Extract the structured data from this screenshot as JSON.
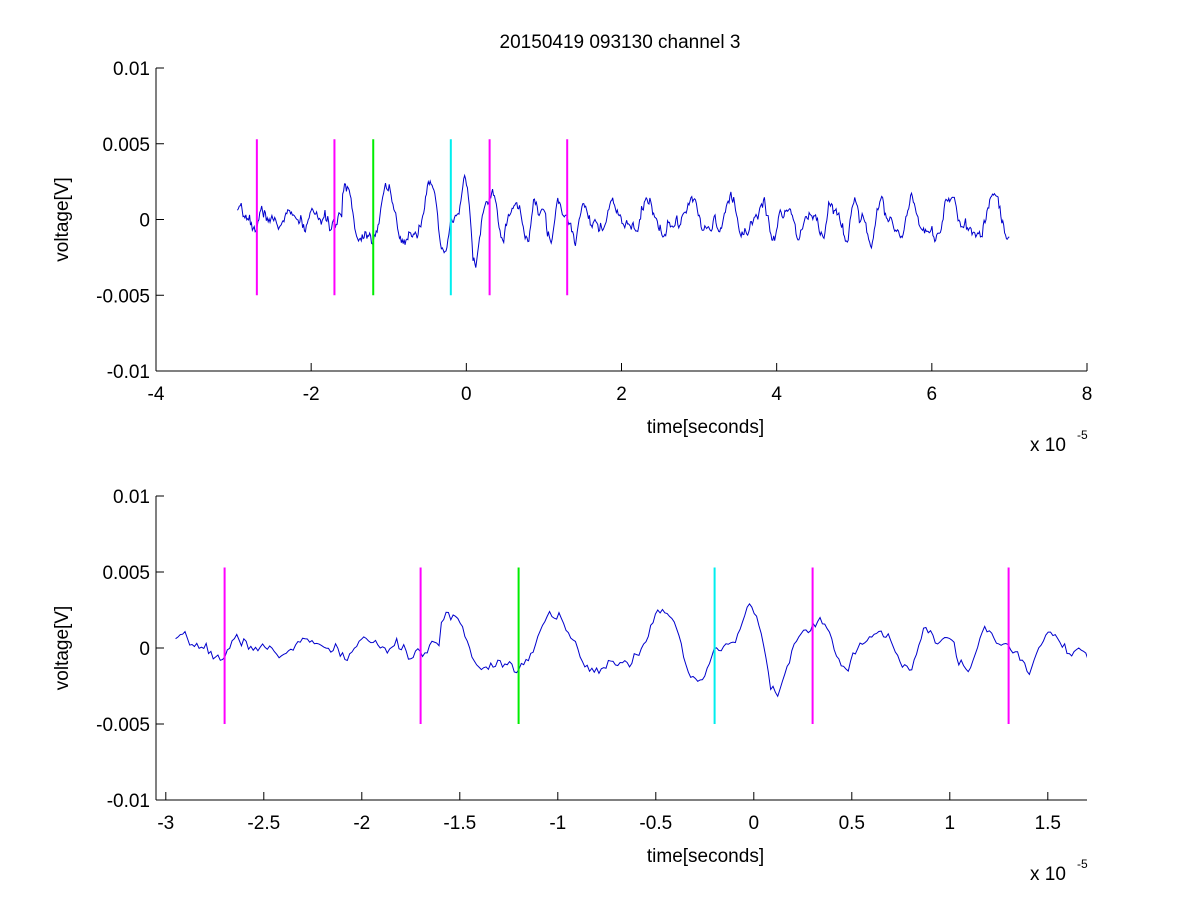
{
  "figure": {
    "title": "20150419 093130 channel 3",
    "trace_color": "#0000cc",
    "marker_colors": {
      "magenta": "#ff00ff",
      "green": "#00ee00",
      "cyan": "#00eeee"
    }
  },
  "chart_data": [
    {
      "type": "line",
      "name": "top-panel",
      "title": "20150419 093130 channel 3",
      "xlabel": "time[seconds]",
      "ylabel": "voltage[V]",
      "x_multiplier": "x 10",
      "x_multiplier_exp": "-5",
      "xlim": [
        -4,
        8
      ],
      "ylim": [
        -0.01,
        0.01
      ],
      "xticks": [
        -4,
        -2,
        0,
        2,
        4,
        6,
        8
      ],
      "xtick_labels": [
        "-4",
        "-2",
        "0",
        "2",
        "4",
        "6",
        "8"
      ],
      "yticks": [
        0.01,
        0.005,
        0,
        -0.005,
        -0.01
      ],
      "ytick_labels": [
        "0.01",
        "0.005",
        "0",
        "-0.005",
        "-0.01"
      ],
      "grid": false,
      "trace": {
        "x_start": -2.95,
        "x_end": 7.0,
        "seed": 7
      },
      "markers": [
        {
          "x": -2.7,
          "color": "magenta",
          "ymin": -0.005,
          "ymax": 0.0053
        },
        {
          "x": -1.7,
          "color": "magenta",
          "ymin": -0.005,
          "ymax": 0.0053
        },
        {
          "x": -1.2,
          "color": "green",
          "ymin": -0.005,
          "ymax": 0.0053
        },
        {
          "x": -0.2,
          "color": "cyan",
          "ymin": -0.005,
          "ymax": 0.0053
        },
        {
          "x": 0.3,
          "color": "magenta",
          "ymin": -0.005,
          "ymax": 0.0053
        },
        {
          "x": 1.3,
          "color": "magenta",
          "ymin": -0.005,
          "ymax": 0.0053
        }
      ]
    },
    {
      "type": "line",
      "name": "bottom-panel",
      "title": "",
      "xlabel": "time[seconds]",
      "ylabel": "voltage[V]",
      "x_multiplier": "x 10",
      "x_multiplier_exp": "-5",
      "xlim": [
        -3.05,
        1.7
      ],
      "ylim": [
        -0.01,
        0.01
      ],
      "xticks": [
        -3,
        -2.5,
        -2,
        -1.5,
        -1,
        -0.5,
        0,
        0.5,
        1,
        1.5
      ],
      "xtick_labels": [
        "-3",
        "-2.5",
        "-2",
        "-1.5",
        "-1",
        "-0.5",
        "0",
        "0.5",
        "1",
        "1.5"
      ],
      "yticks": [
        0.01,
        0.005,
        0,
        -0.005,
        -0.01
      ],
      "ytick_labels": [
        "0.01",
        "0.005",
        "0",
        "-0.005",
        "-0.01"
      ],
      "grid": false,
      "trace": {
        "x_start": -2.95,
        "x_end": 1.7,
        "seed": 7
      },
      "markers": [
        {
          "x": -2.7,
          "color": "magenta",
          "ymin": -0.005,
          "ymax": 0.0053
        },
        {
          "x": -1.7,
          "color": "magenta",
          "ymin": -0.005,
          "ymax": 0.0053
        },
        {
          "x": -1.2,
          "color": "green",
          "ymin": -0.005,
          "ymax": 0.0053
        },
        {
          "x": -0.2,
          "color": "cyan",
          "ymin": -0.005,
          "ymax": 0.0053
        },
        {
          "x": 0.3,
          "color": "magenta",
          "ymin": -0.005,
          "ymax": 0.0053
        },
        {
          "x": 1.3,
          "color": "magenta",
          "ymin": -0.005,
          "ymax": 0.0053
        }
      ]
    }
  ]
}
